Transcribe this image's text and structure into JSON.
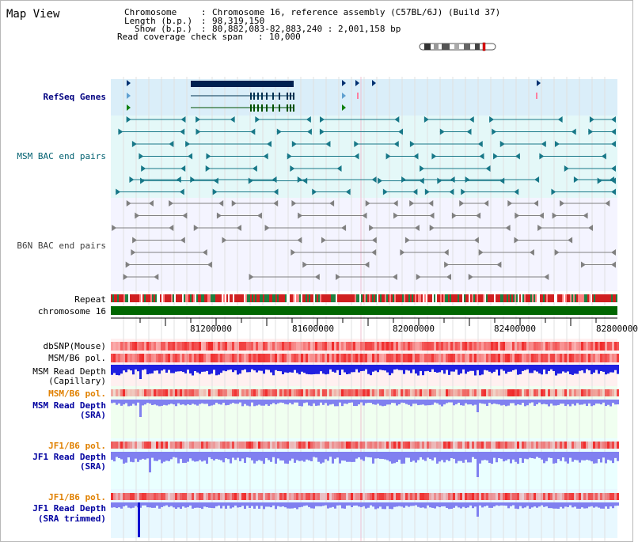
{
  "page": {
    "title": "Map View"
  },
  "header": {
    "chromosome_key": "Chromosome",
    "chromosome_val": "Chromosome 16, reference assembly (C57BL/6J) (Build 37)",
    "length_key": "Length (b.p.)",
    "length_val": "98,319,150",
    "show_key": "Show (b.p.)",
    "show_val": "80,882,083-82,883,240 : 2,001,158 bp",
    "coverage_key": "Read coverage check span",
    "coverage_val": "10,000"
  },
  "tracks": {
    "refseq": "RefSeq Genes",
    "msm_bac": "MSM BAC end pairs",
    "b6n_bac": "B6N BAC end pairs",
    "repeat": "Repeat",
    "chromosome": "chromosome 16",
    "dbsnp": "dbSNP(Mouse)",
    "msm_b6_pol": "MSM/B6 pol.",
    "msm_read_depth_cap_1": "MSM Read Depth",
    "msm_read_depth_cap_2": "(Capillary)",
    "msm_b6_pol_2": "MSM/B6 pol.",
    "msm_read_depth_sra_1": "MSM Read Depth",
    "msm_read_depth_sra_2": "(SRA)",
    "jf1_b6_pol": "JF1/B6 pol.",
    "jf1_read_depth_sra_1": "JF1 Read Depth",
    "jf1_read_depth_sra_2": "(SRA)",
    "jf1_b6_pol_2": "JF1/B6 pol.",
    "jf1_read_depth_trim_1": "JF1 Read Depth",
    "jf1_read_depth_trim_2": "(SRA trimmed)"
  },
  "axis": {
    "ticks": [
      "81200000",
      "81600000",
      "82000000",
      "82400000",
      "82800000"
    ]
  },
  "colors": {
    "refseq_bg": "#daeef9",
    "bac_bg": "#e4f8f8",
    "b6n_bg": "#f4f4ff",
    "chromosome_bar": "#006600",
    "read_depth_blue": "#2020e0",
    "read_depth_light": "#8080f0",
    "pol_red": "#ff4040"
  }
}
